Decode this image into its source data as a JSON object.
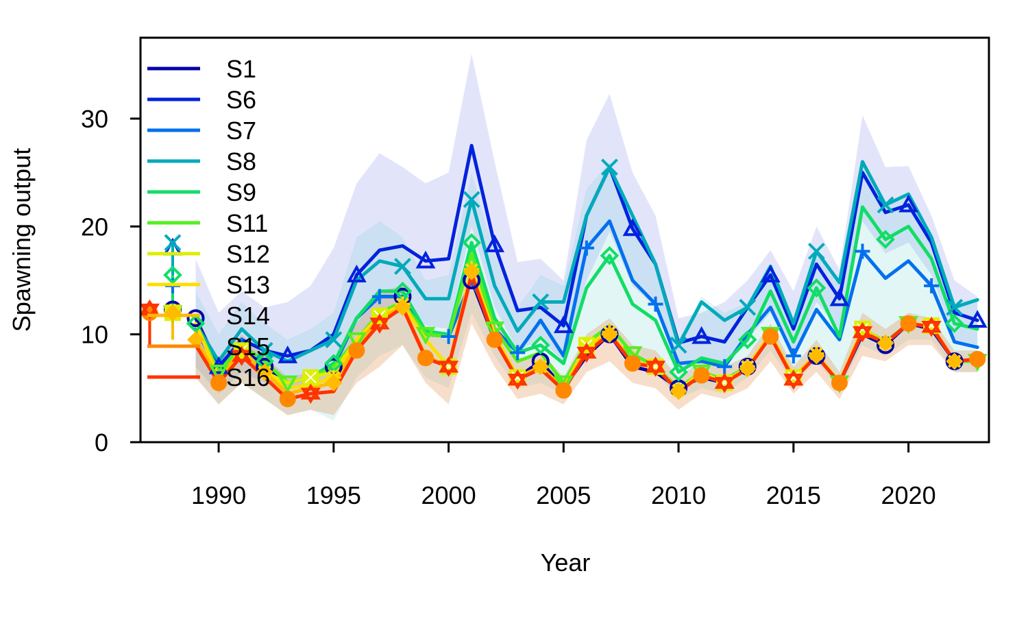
{
  "chart_data": {
    "type": "line",
    "title": "",
    "xlabel": "Year",
    "ylabel": "Spawning output",
    "xlim": [
      1986.6,
      2023.5
    ],
    "ylim": [
      0,
      37.5
    ],
    "x_ticks": [
      1990,
      1995,
      2000,
      2005,
      2010,
      2015,
      2020
    ],
    "y_ticks": [
      0,
      10,
      20,
      30
    ],
    "x_tick_labels": [
      "1990",
      "1995",
      "2000",
      "2005",
      "2010",
      "2015",
      "2020"
    ],
    "y_tick_labels": [
      "0",
      "10",
      "20",
      "30"
    ],
    "grid": false,
    "legend_position": "top-left",
    "x": [
      1989,
      1990,
      1991,
      1992,
      1993,
      1994,
      1995,
      1996,
      1997,
      1998,
      1999,
      2000,
      2001,
      2002,
      2003,
      2004,
      2005,
      2006,
      2007,
      2008,
      2009,
      2010,
      2011,
      2012,
      2013,
      2014,
      2015,
      2016,
      2017,
      2018,
      2019,
      2020,
      2021,
      2022,
      2023
    ],
    "series": [
      {
        "name": "S1",
        "color": "#0000a8",
        "marker": "circle",
        "values": [
          11.5,
          7.0,
          9.0,
          7.0,
          5.5,
          6.0,
          7.0,
          11.5,
          13.5,
          13.5,
          10.0,
          9.8,
          15.0,
          9.5,
          6.0,
          7.5,
          5.0,
          8.0,
          10.0,
          7.0,
          6.5,
          5.0,
          6.0,
          5.5,
          7.0,
          10.0,
          6.0,
          8.0,
          5.5,
          10.0,
          9.0,
          11.0,
          10.5,
          7.5,
          7.5
        ]
      },
      {
        "name": "S6",
        "color": "#0022dd",
        "marker": "triangle-up",
        "values": [
          10.5,
          7.0,
          9.5,
          8.5,
          8.0,
          8.5,
          10.0,
          15.5,
          17.8,
          18.2,
          16.8,
          17.0,
          27.5,
          18.3,
          12.2,
          12.5,
          10.8,
          21.0,
          25.5,
          19.8,
          16.5,
          9.2,
          9.8,
          9.3,
          12.5,
          15.5,
          10.5,
          16.5,
          13.3,
          25.0,
          21.3,
          22.0,
          18.5,
          12.0,
          11.3
        ]
      },
      {
        "name": "S7",
        "color": "#0070ee",
        "marker": "plus",
        "values": [
          10.5,
          6.5,
          9.0,
          7.5,
          5.5,
          6.0,
          7.0,
          11.5,
          13.5,
          13.5,
          10.0,
          9.8,
          15.0,
          10.5,
          8.3,
          11.3,
          8.0,
          18.0,
          20.5,
          15.0,
          12.8,
          7.3,
          7.5,
          7.0,
          10.0,
          12.5,
          8.0,
          12.3,
          9.5,
          17.7,
          15.2,
          16.8,
          14.5,
          9.3,
          8.8
        ]
      },
      {
        "name": "S8",
        "color": "#00aabb",
        "marker": "x",
        "values": [
          11.0,
          7.5,
          10.5,
          8.5,
          7.5,
          8.5,
          9.5,
          15.0,
          16.8,
          16.3,
          13.3,
          13.3,
          22.5,
          14.5,
          10.3,
          13.0,
          13.0,
          21.0,
          25.5,
          21.0,
          16.5,
          9.0,
          13.0,
          11.3,
          12.5,
          16.3,
          11.0,
          17.7,
          14.8,
          26.0,
          22.0,
          23.0,
          19.0,
          12.5,
          13.2
        ]
      },
      {
        "name": "S9",
        "color": "#11dd66",
        "marker": "diamond",
        "values": [
          11.0,
          6.5,
          9.0,
          7.5,
          5.5,
          6.0,
          7.3,
          11.5,
          14.0,
          14.0,
          10.3,
          10.0,
          18.5,
          11.5,
          8.3,
          9.0,
          7.3,
          14.3,
          17.3,
          12.8,
          11.3,
          6.5,
          7.8,
          7.3,
          9.5,
          14.0,
          9.3,
          14.3,
          9.8,
          21.8,
          18.8,
          20.0,
          17.0,
          11.0,
          10.5
        ]
      },
      {
        "name": "S11",
        "color": "#55ee22",
        "marker": "triangle-down",
        "values": [
          11.0,
          6.5,
          9.0,
          7.5,
          5.5,
          6.0,
          7.0,
          9.5,
          12.0,
          13.0,
          10.0,
          9.8,
          17.5,
          10.5,
          7.5,
          8.3,
          5.5,
          9.2,
          10.8,
          8.2,
          7.0,
          5.0,
          6.5,
          5.8,
          7.0,
          10.0,
          6.0,
          8.2,
          5.5,
          10.5,
          9.3,
          11.0,
          10.8,
          7.5,
          7.5
        ]
      },
      {
        "name": "S12",
        "color": "#ddee00",
        "marker": "square-x",
        "values": [
          11.0,
          6.0,
          8.5,
          6.5,
          5.5,
          6.0,
          6.5,
          9.5,
          11.7,
          12.8,
          9.5,
          7.0,
          16.0,
          10.0,
          6.0,
          7.0,
          5.0,
          9.0,
          10.2,
          7.5,
          7.0,
          4.8,
          6.5,
          5.5,
          7.0,
          10.0,
          6.0,
          8.2,
          5.5,
          10.5,
          9.2,
          11.0,
          10.8,
          7.5,
          7.7
        ]
      },
      {
        "name": "S13",
        "color": "#ffdd00",
        "marker": "asterisk",
        "values": [
          11.0,
          6.0,
          8.5,
          6.5,
          5.0,
          5.3,
          6.0,
          9.5,
          11.7,
          12.8,
          9.5,
          7.0,
          16.0,
          10.0,
          6.0,
          7.0,
          5.0,
          9.0,
          10.2,
          7.5,
          7.0,
          4.8,
          6.3,
          5.5,
          7.0,
          10.0,
          6.0,
          8.2,
          5.5,
          10.5,
          9.2,
          11.0,
          10.8,
          7.5,
          7.7
        ]
      },
      {
        "name": "S14",
        "color": "#ffbb00",
        "marker": "diamond-filled",
        "values": [
          9.5,
          6.0,
          8.5,
          6.5,
          4.5,
          5.0,
          5.5,
          9.0,
          11.5,
          12.5,
          8.0,
          7.0,
          15.8,
          9.5,
          6.0,
          7.0,
          5.0,
          8.5,
          10.0,
          7.3,
          7.0,
          4.7,
          6.2,
          5.5,
          6.8,
          9.8,
          6.0,
          8.0,
          5.5,
          10.3,
          9.2,
          11.0,
          10.7,
          7.5,
          7.7
        ]
      },
      {
        "name": "S15",
        "color": "#ff8800",
        "marker": "circle-filled",
        "values": [
          9.0,
          5.5,
          8.0,
          6.0,
          4.0,
          4.5,
          4.7,
          8.5,
          11.0,
          12.5,
          7.8,
          7.0,
          15.5,
          9.5,
          5.8,
          6.8,
          4.8,
          8.3,
          10.0,
          7.3,
          7.0,
          4.7,
          6.2,
          5.5,
          6.8,
          9.8,
          5.8,
          8.0,
          5.5,
          10.2,
          9.2,
          11.0,
          10.7,
          7.5,
          7.7
        ]
      },
      {
        "name": "S16",
        "color": "#ff3300",
        "marker": "star",
        "values": [
          9.0,
          5.5,
          8.0,
          6.0,
          4.0,
          4.5,
          4.7,
          8.5,
          11.0,
          12.5,
          7.8,
          7.0,
          15.5,
          9.5,
          5.8,
          6.8,
          4.8,
          8.3,
          10.0,
          7.3,
          7.0,
          4.7,
          6.2,
          5.5,
          6.8,
          9.8,
          5.8,
          8.0,
          5.5,
          10.2,
          9.2,
          11.0,
          10.7,
          7.5,
          7.7
        ]
      }
    ],
    "initial_points": [
      {
        "series": "S1",
        "x": 1988,
        "y": 12.3
      },
      {
        "series": "S6",
        "x": 1988,
        "y": 18.0
      },
      {
        "series": "S7",
        "x": 1988,
        "y": 14.5
      },
      {
        "series": "S8",
        "x": 1988,
        "y": 18.5
      },
      {
        "series": "S9",
        "x": 1988,
        "y": 15.5
      },
      {
        "series": "S11",
        "x": 1988,
        "y": 12.0
      },
      {
        "series": "S12",
        "x": 1988,
        "y": 12.0
      },
      {
        "series": "S13",
        "x": 1988,
        "y": 12.0
      },
      {
        "series": "S14",
        "x": 1988,
        "y": 12.0
      },
      {
        "series": "S15",
        "x": 1987,
        "y": 12.0
      },
      {
        "series": "S16",
        "x": 1987,
        "y": 12.3
      }
    ],
    "bands": [
      {
        "series": "S6",
        "color": "#3344dd",
        "opacity": 0.14,
        "upper": [
          17.0,
          12.0,
          14.0,
          12.5,
          13.0,
          14.5,
          18.0,
          24.0,
          26.8,
          25.5,
          24.0,
          25.0,
          36.0,
          26.0,
          16.7,
          17.0,
          15.0,
          28.0,
          32.3,
          25.0,
          21.0,
          11.5,
          12.0,
          13.0,
          15.0,
          17.8,
          14.0,
          20.0,
          16.0,
          30.3,
          25.5,
          25.6,
          21.0,
          15.0,
          13.5
        ],
        "lower": [
          7.0,
          4.5,
          6.5,
          5.5,
          5.0,
          5.5,
          6.0,
          10.0,
          11.5,
          12.0,
          10.8,
          10.5,
          20.0,
          12.5,
          8.5,
          9.5,
          7.5,
          15.0,
          19.5,
          14.5,
          12.5,
          6.5,
          7.5,
          7.0,
          9.5,
          12.0,
          8.0,
          13.0,
          10.5,
          20.5,
          17.5,
          18.5,
          15.5,
          9.5,
          9.0
        ]
      },
      {
        "series": "S8",
        "color": "#66cccc",
        "opacity": 0.18,
        "upper": [
          14.0,
          10.0,
          13.0,
          11.0,
          9.5,
          10.5,
          12.0,
          19.0,
          20.5,
          19.0,
          15.0,
          15.5,
          25.0,
          17.5,
          12.5,
          15.5,
          14.5,
          23.5,
          26.0,
          21.0,
          17.0,
          9.5,
          13.5,
          12.0,
          13.0,
          16.5,
          11.5,
          18.0,
          15.0,
          26.0,
          22.0,
          23.0,
          19.0,
          13.0,
          13.3
        ],
        "lower": [
          6.0,
          3.5,
          5.5,
          4.0,
          2.5,
          3.0,
          2.0,
          6.0,
          8.0,
          9.0,
          6.0,
          5.0,
          12.0,
          8.0,
          5.0,
          5.5,
          4.5,
          8.0,
          10.0,
          8.0,
          6.5,
          4.0,
          5.0,
          4.5,
          6.0,
          8.5,
          5.5,
          7.5,
          5.0,
          9.0,
          8.0,
          9.5,
          9.5,
          6.5,
          6.5
        ]
      },
      {
        "series": "S16",
        "color": "#dd8844",
        "opacity": 0.28,
        "upper": [
          12.0,
          7.5,
          10.0,
          8.0,
          6.0,
          6.5,
          7.0,
          11.0,
          14.0,
          14.5,
          10.0,
          9.5,
          18.0,
          11.5,
          7.5,
          8.5,
          6.0,
          10.0,
          11.5,
          9.0,
          8.5,
          6.0,
          7.5,
          7.0,
          8.0,
          11.0,
          7.0,
          9.5,
          6.5,
          12.0,
          10.5,
          12.0,
          11.5,
          8.5,
          8.5
        ],
        "lower": [
          6.0,
          3.5,
          5.5,
          4.0,
          2.5,
          3.0,
          2.5,
          5.5,
          7.0,
          9.0,
          5.5,
          3.5,
          11.0,
          7.0,
          4.0,
          4.5,
          3.5,
          6.5,
          7.5,
          5.5,
          5.0,
          3.0,
          4.5,
          4.0,
          5.0,
          7.5,
          4.5,
          6.5,
          4.0,
          8.0,
          7.5,
          9.0,
          9.0,
          6.5,
          6.5
        ]
      }
    ]
  }
}
